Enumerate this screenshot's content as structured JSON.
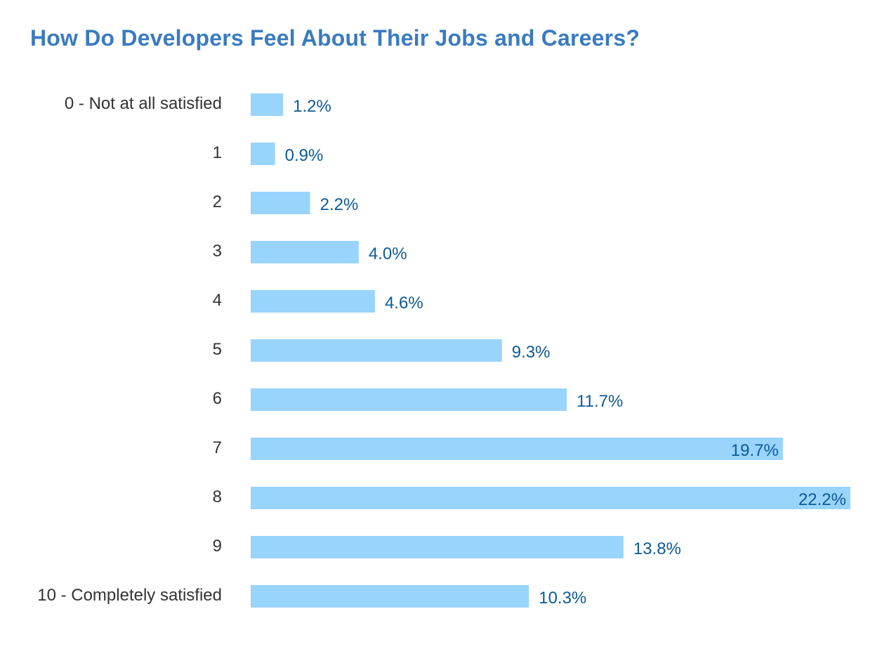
{
  "chart_data": {
    "type": "bar",
    "orientation": "horizontal",
    "title": "How Do Developers Feel About Their Jobs and Careers?",
    "xlabel": "",
    "ylabel": "",
    "categories": [
      "0 - Not at all satisfied",
      "1",
      "2",
      "3",
      "4",
      "5",
      "6",
      "7",
      "8",
      "9",
      "10 - Completely satisfied"
    ],
    "values": [
      1.2,
      0.9,
      2.2,
      4.0,
      4.6,
      9.3,
      11.7,
      19.7,
      22.2,
      13.8,
      10.3
    ],
    "value_labels": [
      "1.2%",
      "0.9%",
      "2.2%",
      "4.0%",
      "4.6%",
      "9.3%",
      "11.7%",
      "19.7%",
      "22.2%",
      "13.8%",
      "10.3%"
    ],
    "unit": "%",
    "xlim": [
      0,
      22.2
    ],
    "grid": false,
    "legend": "none",
    "colors": {
      "bar": "#99d4fd",
      "title": "#3a7bbf",
      "value_label": "#0d5a96",
      "category_label": "#333333"
    }
  }
}
